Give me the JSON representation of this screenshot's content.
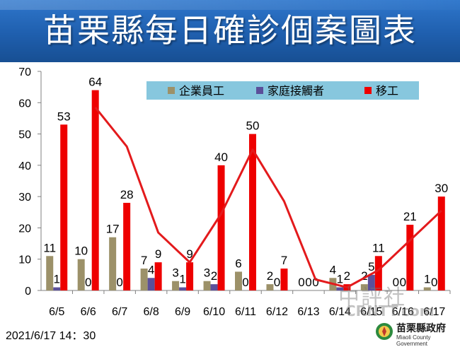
{
  "header": {
    "title": "苗栗縣每日確診個案圖表"
  },
  "footer": {
    "timestamp": "2021/6/17  14：30",
    "watermark": "中評社",
    "watermark_sub": "CRNTT.com",
    "gov_name": "苗栗縣政府",
    "gov_name_en": "Miaoli County Government"
  },
  "colors": {
    "banner": "#1f5fae",
    "series_enterprise": "#9c9169",
    "series_household": "#5b4f9a",
    "series_migrant": "#ee0000",
    "trend_line": "#e31a1c",
    "legend_bg": "#87c7de"
  },
  "chart_data": {
    "type": "bar",
    "categories": [
      "6/5",
      "6/6",
      "6/7",
      "6/8",
      "6/9",
      "6/10",
      "6/11",
      "6/12",
      "6/13",
      "6/14",
      "6/15",
      "6/16",
      "6/17"
    ],
    "series": [
      {
        "name": "企業員工",
        "values": [
          11,
          10,
          17,
          7,
          3,
          3,
          6,
          2,
          0,
          4,
          2,
          0,
          1
        ]
      },
      {
        "name": "家庭接觸者",
        "values": [
          1,
          0,
          0,
          4,
          1,
          2,
          0,
          0,
          0,
          1,
          5,
          0,
          0
        ]
      },
      {
        "name": "移工",
        "values": [
          53,
          64,
          28,
          9,
          9,
          40,
          50,
          7,
          0,
          2,
          11,
          21,
          30
        ]
      }
    ],
    "trend_line": {
      "type": "line",
      "of_series": "移工",
      "moving_average": 2
    },
    "ylim": [
      0,
      70
    ],
    "yticks": [
      0,
      10,
      20,
      30,
      40,
      50,
      60,
      70
    ],
    "grid": false,
    "legend_position": "top-right",
    "title": "",
    "xlabel": "",
    "ylabel": ""
  }
}
